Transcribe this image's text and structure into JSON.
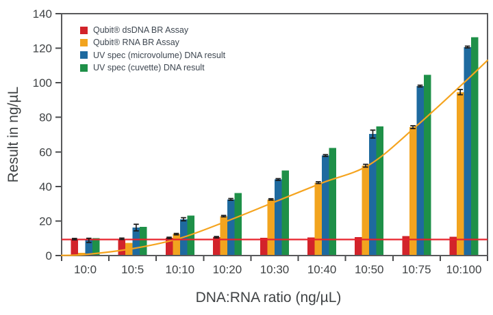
{
  "chart_data": {
    "type": "bar",
    "title": "",
    "xlabel": "DNA:RNA ratio (ng/µL)",
    "ylabel": "Result in ng/µL",
    "ylim": [
      0,
      140
    ],
    "yticks": [
      0,
      20,
      40,
      60,
      80,
      100,
      120,
      140
    ],
    "categories": [
      "10:0",
      "10:5",
      "10:10",
      "10:20",
      "10:30",
      "10:40",
      "10:50",
      "10:75",
      "10:100"
    ],
    "series": [
      {
        "name": "Qubit® dsDNA BR Assay",
        "color": "#D2232A",
        "values": [
          9.5,
          9.7,
          10.2,
          10.6,
          10.2,
          10.4,
          10.7,
          11.2,
          10.8
        ],
        "errors": [
          0.4,
          0.4,
          0.4,
          0.4,
          0,
          0,
          0,
          0,
          0
        ]
      },
      {
        "name": "Qubit® RNA BR Assay",
        "color": "#F2A41F",
        "values": [
          1.5,
          7.3,
          12.4,
          22.8,
          32.5,
          42.2,
          52.0,
          74.3,
          94.6
        ],
        "errors": [
          0,
          0,
          0.4,
          0.4,
          0.4,
          0.5,
          0.8,
          0.8,
          1.5
        ]
      },
      {
        "name": "UV spec (microvolume) DNA result",
        "color": "#1E6A9F",
        "values": [
          8.8,
          16.2,
          21.0,
          32.5,
          44.0,
          57.9,
          70.3,
          98.1,
          120.7
        ],
        "errors": [
          1.2,
          1.9,
          0.9,
          0.5,
          0.5,
          0.5,
          2.3,
          0.5,
          0.5
        ]
      },
      {
        "name": "UV spec (cuvette) DNA result",
        "color": "#1E9048",
        "values": [
          10.0,
          16.6,
          23.2,
          36.2,
          49.3,
          62.3,
          74.7,
          104.6,
          126.3
        ],
        "errors": [
          0,
          0,
          0,
          0,
          0,
          0,
          0,
          0,
          0
        ]
      }
    ],
    "reference_line": {
      "color": "#E8222C",
      "value": 9.3
    },
    "trend_line": {
      "color": "#F5A41F",
      "points": [
        [
          -0.5,
          0.1
        ],
        [
          0,
          0.6
        ],
        [
          1,
          4
        ],
        [
          2,
          10
        ],
        [
          3,
          20
        ],
        [
          4,
          31
        ],
        [
          5,
          42
        ],
        [
          6,
          52.5
        ],
        [
          7,
          75
        ],
        [
          8,
          100
        ],
        [
          8.5,
          113
        ]
      ]
    },
    "legend_position": "top-left",
    "grid": false
  },
  "colors": {
    "frame": "#58595B",
    "axis": "#4A4B4D",
    "tick_text": "#3F4244",
    "error_bar": "#1A1A1A",
    "background": "#FFFFFF"
  }
}
